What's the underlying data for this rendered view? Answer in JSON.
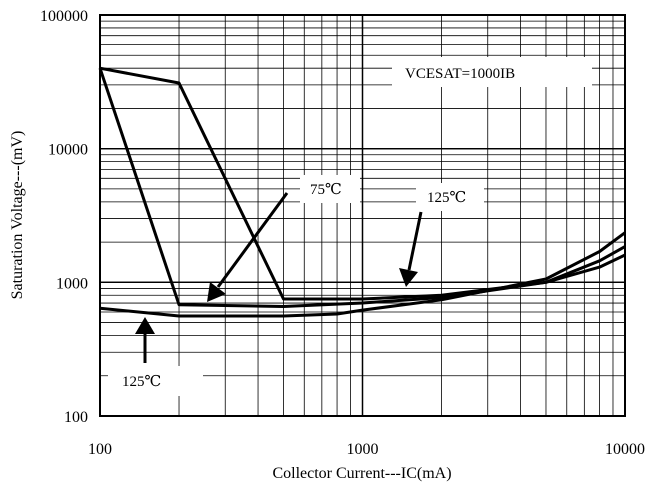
{
  "chart_data": {
    "type": "line",
    "x_scale": "log",
    "y_scale": "log",
    "xlim": [
      100,
      10000
    ],
    "ylim": [
      100,
      100000
    ],
    "x_ticks": [
      "100",
      "1000",
      "10000"
    ],
    "y_ticks": [
      "100",
      "1000",
      "10000",
      "100000"
    ],
    "xlabel": "Collector Current---IC(mA)",
    "ylabel": "Saturation Voltage---(mV)",
    "grid": true,
    "annotations": {
      "condition": "VCESAT=1000IB",
      "t75": "75℃",
      "t125_upper": "125℃",
      "t125_lower": "125℃"
    },
    "series": [
      {
        "name": "",
        "x": [
          100,
          200,
          500,
          1000,
          2000,
          5000,
          8000,
          10000
        ],
        "y": [
          40000,
          31000,
          750,
          750,
          800,
          1000,
          1300,
          1600
        ]
      },
      {
        "name": "",
        "x": [
          100,
          200,
          500,
          1000,
          2000,
          5000,
          8000,
          10000
        ],
        "y": [
          40000,
          680,
          660,
          700,
          770,
          1000,
          1450,
          1850
        ]
      },
      {
        "name": "",
        "x": [
          100,
          200,
          500,
          800,
          1000,
          2000,
          5000,
          8000,
          10000
        ],
        "y": [
          640,
          560,
          560,
          580,
          620,
          740,
          1060,
          1700,
          2350
        ]
      }
    ]
  }
}
